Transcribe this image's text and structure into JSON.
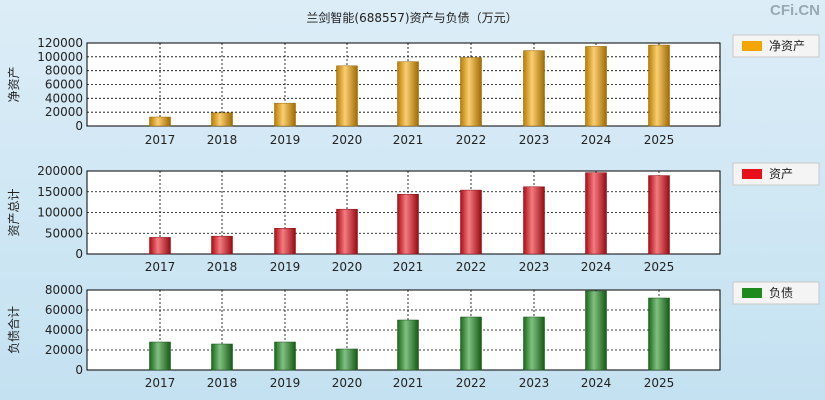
{
  "title": "兰剑智能(688557)资产与负债（万元）",
  "watermark": "CFi.CN",
  "chart_data": [
    {
      "type": "bar",
      "ylabel": "净资产",
      "legend": "净资产",
      "color": "#f5a500",
      "categories": [
        "2017",
        "2018",
        "2019",
        "2020",
        "2021",
        "2022",
        "2023",
        "2024",
        "2025"
      ],
      "values": [
        13000,
        19000,
        33000,
        87000,
        93000,
        99000,
        109000,
        115000,
        117000
      ],
      "ylim": [
        0,
        120000
      ],
      "yticks": [
        0,
        20000,
        40000,
        60000,
        80000,
        100000,
        120000
      ],
      "ytick_labels": [
        "0",
        "20000",
        "40000",
        "60000",
        "80000",
        "100000",
        "120000"
      ],
      "grid": true,
      "legend_position": "right"
    },
    {
      "type": "bar",
      "ylabel": "资产总计",
      "legend": "资产",
      "color": "#e8101a",
      "categories": [
        "2017",
        "2018",
        "2019",
        "2020",
        "2021",
        "2022",
        "2023",
        "2024",
        "2025"
      ],
      "values": [
        40000,
        43000,
        62000,
        108000,
        144000,
        154000,
        162000,
        196000,
        189000
      ],
      "ylim": [
        0,
        200000
      ],
      "yticks": [
        0,
        50000,
        100000,
        150000,
        200000
      ],
      "ytick_labels": [
        "0",
        "50000",
        "100000",
        "150000",
        "200000"
      ],
      "grid": true,
      "legend_position": "right"
    },
    {
      "type": "bar",
      "ylabel": "负债合计",
      "legend": "负债",
      "color": "#1e8a1e",
      "categories": [
        "2017",
        "2018",
        "2019",
        "2020",
        "2021",
        "2022",
        "2023",
        "2024",
        "2025"
      ],
      "values": [
        28000,
        26000,
        28000,
        21000,
        50000,
        53000,
        53000,
        79000,
        72000
      ],
      "ylim": [
        0,
        80000
      ],
      "yticks": [
        0,
        20000,
        40000,
        60000,
        80000
      ],
      "ytick_labels": [
        "0",
        "20000",
        "40000",
        "60000",
        "80000"
      ],
      "grid": true,
      "legend_position": "right"
    }
  ]
}
